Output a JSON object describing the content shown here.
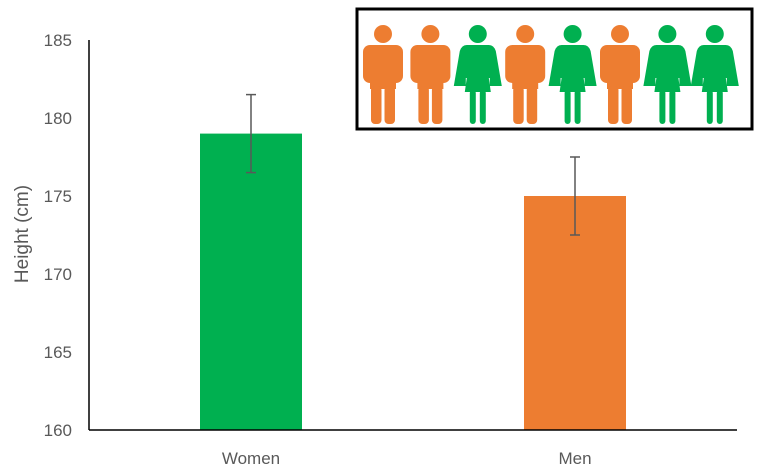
{
  "chart_data": {
    "type": "bar",
    "title": "",
    "xlabel": "",
    "ylabel": "Height (cm)",
    "categories": [
      "Women",
      "Men"
    ],
    "values": [
      179,
      175
    ],
    "error": [
      2.5,
      2.5
    ],
    "bar_colors": [
      "#00b050",
      "#ed7d31"
    ],
    "ylim": [
      160,
      185
    ],
    "yticks": [
      160,
      165,
      170,
      175,
      180,
      185
    ],
    "grid": false,
    "legend": "none",
    "axis_color": "#000000",
    "tick_label_color": "#595959",
    "error_bar_color": "#595959"
  },
  "inset": {
    "description_icons": [
      "man-icon",
      "man-icon",
      "woman-icon",
      "man-icon",
      "woman-icon",
      "man-icon",
      "woman-icon",
      "woman-icon"
    ],
    "man_color": "#ed7d31",
    "woman_color": "#00b050",
    "border_color": "#000000"
  }
}
